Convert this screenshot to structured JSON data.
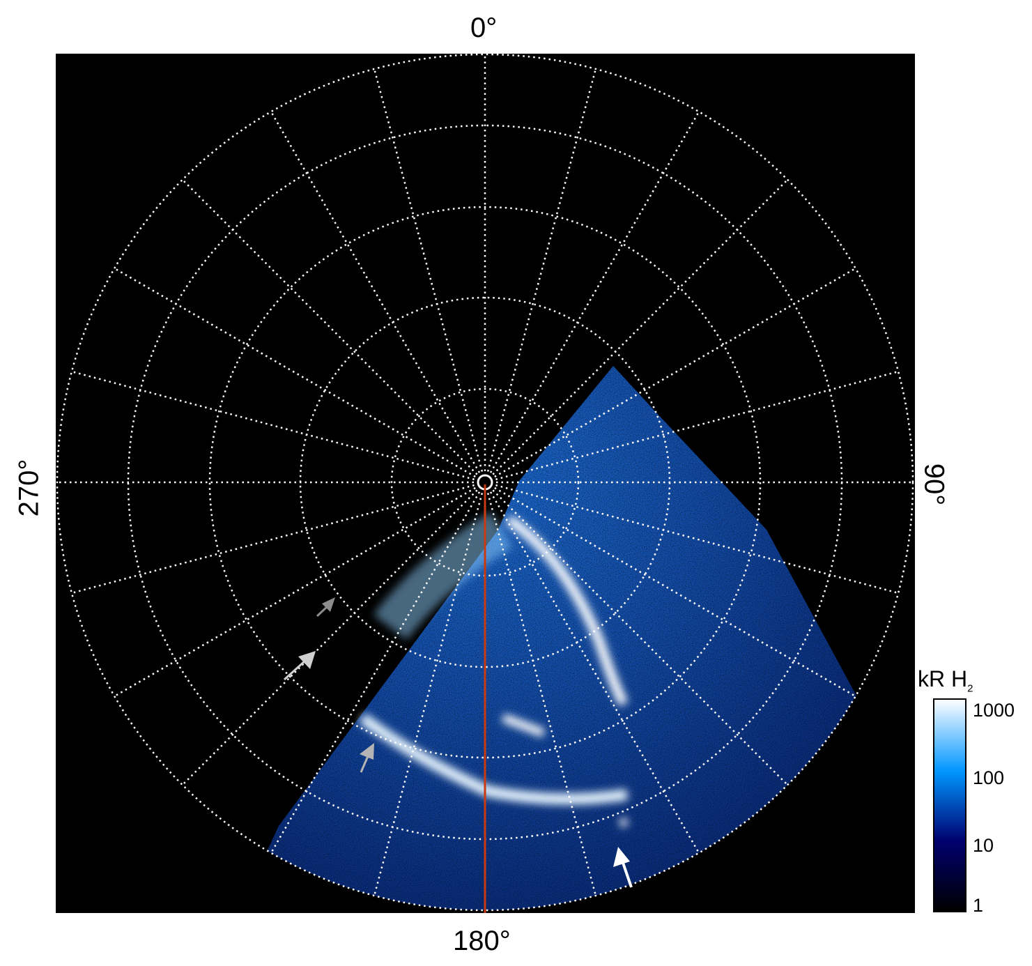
{
  "chart_data": {
    "type": "heatmap",
    "projection": "polar",
    "angular_labels": {
      "top": "0°",
      "right": "90°",
      "bottom": "180°",
      "left": "270°"
    },
    "angular_grid_step_deg": 15,
    "grid": true,
    "colorbar": {
      "label": "kR H",
      "label_subscript": "2",
      "scale": "log",
      "range": [
        1,
        1000
      ],
      "ticks": [
        "1",
        "10",
        "100",
        "1000"
      ],
      "colors": [
        "#000000",
        "#00006e",
        "#0096ff",
        "#ffffff"
      ]
    },
    "reference_line": {
      "angle_deg": 180,
      "color": "#c83a12"
    },
    "arrow_colors": [
      "#8c8c8c",
      "#d0d0d0",
      "#b4b4b4",
      "#ffffff"
    ]
  }
}
